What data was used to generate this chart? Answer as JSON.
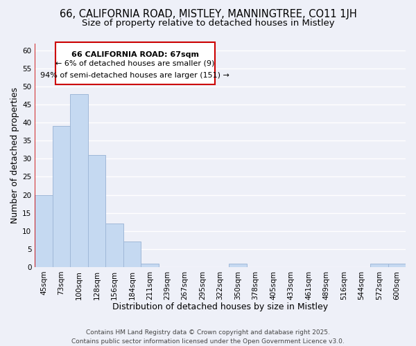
{
  "title": "66, CALIFORNIA ROAD, MISTLEY, MANNINGTREE, CO11 1JH",
  "subtitle": "Size of property relative to detached houses in Mistley",
  "xlabel": "Distribution of detached houses by size in Mistley",
  "ylabel": "Number of detached properties",
  "bar_color": "#c5d9f1",
  "bar_edge_color": "#a0b8d8",
  "categories": [
    "45sqm",
    "73sqm",
    "100sqm",
    "128sqm",
    "156sqm",
    "184sqm",
    "211sqm",
    "239sqm",
    "267sqm",
    "295sqm",
    "322sqm",
    "350sqm",
    "378sqm",
    "405sqm",
    "433sqm",
    "461sqm",
    "489sqm",
    "516sqm",
    "544sqm",
    "572sqm",
    "600sqm"
  ],
  "values": [
    20,
    39,
    48,
    31,
    12,
    7,
    1,
    0,
    0,
    0,
    0,
    1,
    0,
    0,
    0,
    0,
    0,
    0,
    0,
    1,
    1
  ],
  "ylim": [
    0,
    62
  ],
  "yticks": [
    0,
    5,
    10,
    15,
    20,
    25,
    30,
    35,
    40,
    45,
    50,
    55,
    60
  ],
  "annotation_line1": "66 CALIFORNIA ROAD: 67sqm",
  "annotation_line2": "← 6% of detached houses are smaller (9)",
  "annotation_line3": "94% of semi-detached houses are larger (151) →",
  "vline_color": "#cc0000",
  "annotation_box_border_color": "#cc0000",
  "footer_text": "Contains HM Land Registry data © Crown copyright and database right 2025.\nContains public sector information licensed under the Open Government Licence v3.0.",
  "background_color": "#eef0f8",
  "grid_color": "#ffffff",
  "title_fontsize": 10.5,
  "subtitle_fontsize": 9.5,
  "axis_label_fontsize": 9,
  "tick_fontsize": 7.5,
  "annotation_fontsize": 8,
  "footer_fontsize": 6.5
}
